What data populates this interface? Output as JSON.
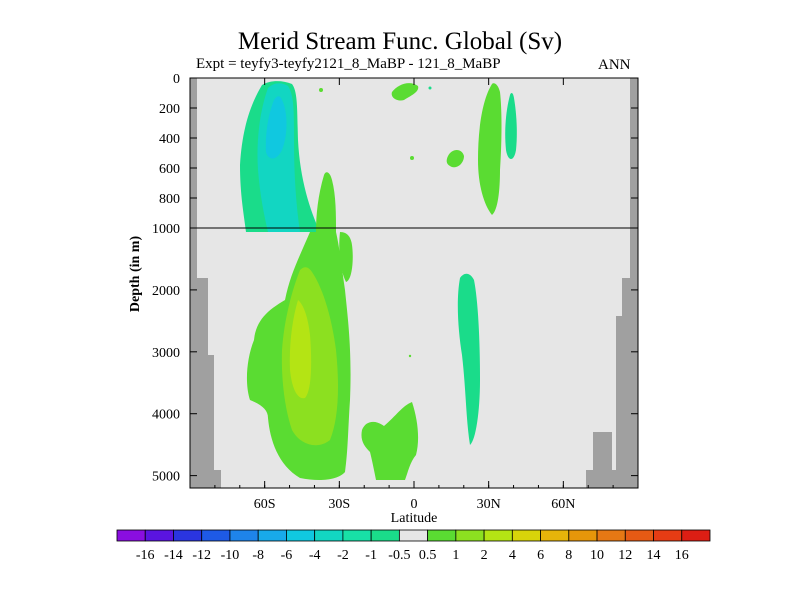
{
  "chart_data": {
    "type": "heatmap",
    "title": "Merid Stream Func. Global (Sv)",
    "subtitle": "Expt = teyfy3-teyfy2121_8_MaBP - 121_8_MaBP",
    "season": "ANN",
    "xlabel": "Latitude",
    "ylabel": "Depth (in m)",
    "xlim": [
      -90,
      90
    ],
    "x_ticks": [
      {
        "value": -60,
        "label": "60S"
      },
      {
        "value": -30,
        "label": "30S"
      },
      {
        "value": 0,
        "label": "0"
      },
      {
        "value": 30,
        "label": "30N"
      },
      {
        "value": 60,
        "label": "60N"
      }
    ],
    "y_axis_upper": {
      "range": [
        0,
        1000
      ],
      "ticks": [
        "0",
        "200",
        "400",
        "600",
        "800",
        "1000"
      ]
    },
    "y_axis_lower": {
      "range": [
        1000,
        5200
      ],
      "ticks": [
        "2000",
        "3000",
        "4000",
        "5000"
      ]
    },
    "colorbar": {
      "labels": [
        "-16",
        "-14",
        "-12",
        "-10",
        "-8",
        "-6",
        "-4",
        "-2",
        "-1",
        "-0.5",
        "0.5",
        "1",
        "2",
        "4",
        "6",
        "8",
        "10",
        "12",
        "14",
        "16"
      ],
      "colors": [
        "#8a0ee0",
        "#5a14e0",
        "#2a35e0",
        "#1e5ae6",
        "#1e84ea",
        "#18aaea",
        "#10c8e0",
        "#12d6c2",
        "#18e0a6",
        "#1adc8a",
        "#e6e6e6",
        "#5adc32",
        "#8ce020",
        "#b4e414",
        "#d8d40a",
        "#e6b40a",
        "#e6960a",
        "#e67814",
        "#e65a14",
        "#e63c14",
        "#dc1e14"
      ]
    },
    "regions": [
      {
        "name": "southern-ocean-upper-cell",
        "range": "-4 to -0.5",
        "lat": [
          -72,
          -47
        ],
        "depth": [
          0,
          1000
        ]
      },
      {
        "name": "deep-southern-positive-cell",
        "range": "0.5 to 4",
        "lat": [
          -68,
          -30
        ],
        "depth": [
          1000,
          5000
        ]
      },
      {
        "name": "north-upper-positive-cell",
        "range": "0.5 to 1",
        "lat": [
          25,
          35
        ],
        "depth": [
          150,
          850
        ]
      },
      {
        "name": "north-deep-negative-cell",
        "range": "-1 to -0.5",
        "lat": [
          17,
          27
        ],
        "depth": [
          1700,
          4500
        ]
      },
      {
        "name": "equatorial-deep-positive-cell",
        "range": "0.5 to 1",
        "lat": [
          -18,
          2
        ],
        "depth": [
          4000,
          5200
        ]
      }
    ]
  }
}
